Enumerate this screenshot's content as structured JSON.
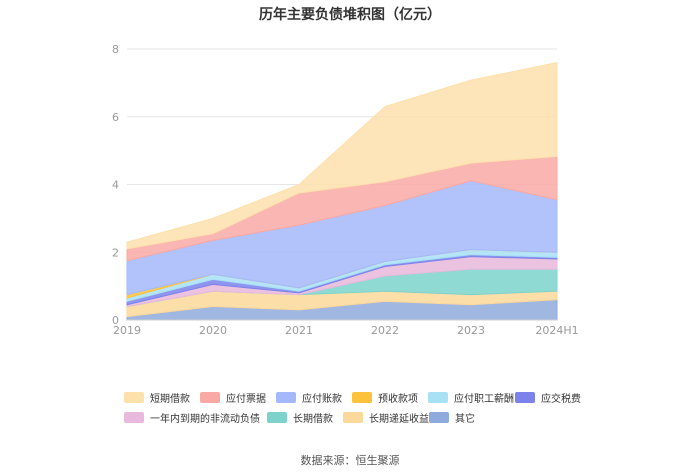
{
  "chart_data": {
    "type": "area",
    "title": "历年主要负债堆积图（亿元）",
    "x": [
      "2019",
      "2020",
      "2021",
      "2022",
      "2023",
      "2024H1"
    ],
    "ylim": [
      0,
      8
    ],
    "yticks": [
      0,
      2,
      4,
      6,
      8
    ],
    "grid": true,
    "legend_position": "bottom",
    "stacked": true,
    "series": [
      {
        "name": "其它",
        "color": "#8faadc",
        "values": [
          0.1,
          0.4,
          0.3,
          0.55,
          0.45,
          0.6
        ]
      },
      {
        "name": "长期递延收益",
        "color": "#fcd89a",
        "values": [
          0.3,
          0.45,
          0.45,
          0.3,
          0.3,
          0.25
        ]
      },
      {
        "name": "长期借款",
        "color": "#7dd3cc",
        "values": [
          0.0,
          0.0,
          0.0,
          0.45,
          0.75,
          0.65
        ]
      },
      {
        "name": "一年内到期的非流动负债",
        "color": "#e8b9dc",
        "values": [
          0.05,
          0.2,
          0.05,
          0.28,
          0.37,
          0.3
        ]
      },
      {
        "name": "应交税费",
        "color": "#7b83eb",
        "values": [
          0.1,
          0.15,
          0.05,
          0.05,
          0.06,
          0.05
        ]
      },
      {
        "name": "应付职工薪酬",
        "color": "#a8e0f5",
        "values": [
          0.1,
          0.15,
          0.1,
          0.1,
          0.15,
          0.15
        ]
      },
      {
        "name": "预收款项",
        "color": "#fcc23c",
        "values": [
          0.1,
          0.0,
          0.0,
          0.0,
          0.0,
          0.0
        ]
      },
      {
        "name": "应付账款",
        "color": "#a4b8fc",
        "values": [
          1.0,
          1.0,
          1.85,
          1.65,
          2.03,
          1.55
        ]
      },
      {
        "name": "应付票据",
        "color": "#f9a9a4",
        "values": [
          0.35,
          0.2,
          0.95,
          0.7,
          0.52,
          1.28
        ]
      },
      {
        "name": "短期借款",
        "color": "#fde1ad",
        "values": [
          0.2,
          0.45,
          0.25,
          2.22,
          2.45,
          2.77
        ]
      }
    ],
    "legend_order": [
      "短期借款",
      "应付票据",
      "应付账款",
      "预收款项",
      "应付职工薪酬",
      "应交税费",
      "一年内到期的非流动负债",
      "长期借款",
      "长期递延收益",
      "其它"
    ]
  },
  "source": "数据来源：恒生聚源"
}
